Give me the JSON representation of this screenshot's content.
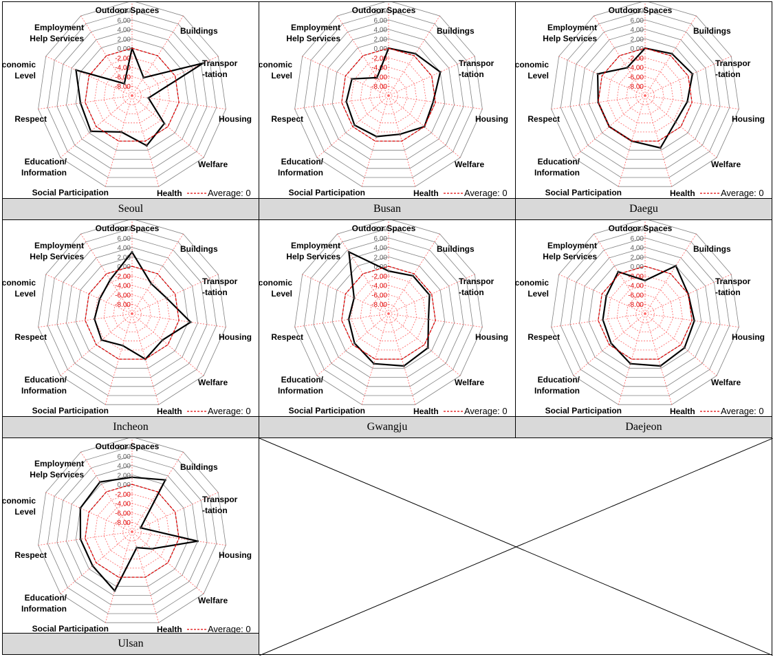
{
  "legend": {
    "label": "Average: 0"
  },
  "colors": {
    "series": "#000000",
    "average": "#e00000",
    "grid": "#808080",
    "spoke": "#ff6060",
    "caption_bg": "#d9d9d9"
  },
  "chart_data": [
    {
      "type": "radar",
      "caption": "Seoul",
      "axes": [
        "Outdoor Spaces",
        "Buildings",
        "Transpor\n-tation",
        "Housing",
        "Welfare",
        "Health",
        "Social Participation",
        "Education/\nInformation",
        "Respect",
        "Economic\nLevel",
        "Employment\nHelp Services"
      ],
      "ticks": [
        "8.00",
        "6.00",
        "4.00",
        "2.00",
        "0.00",
        "-2.00",
        "-4.00",
        "-6.00",
        "-8.00"
      ],
      "rlim": [
        -10,
        8
      ],
      "series": [
        {
          "name": "",
          "values": [
            0.0,
            -5.5,
            6.5,
            -6.5,
            -1.0,
            1.0,
            -2.0,
            1.5,
            1.0,
            3.0,
            -7.0
          ]
        },
        {
          "name": "Average: 0",
          "values": [
            0,
            0,
            0,
            0,
            0,
            0,
            0,
            0,
            0,
            0,
            0
          ]
        }
      ]
    },
    {
      "type": "radar",
      "caption": "Busan",
      "axes": [
        "Outdoor Spaces",
        "Buildings",
        "Transpor\n-tation",
        "Housing",
        "Welfare",
        "Health",
        "Social Participation",
        "Education/\nInformation",
        "Respect",
        "Economic\nLevel",
        "Employment\nHelp Services"
      ],
      "ticks": [
        "8.00",
        "6.00",
        "4.00",
        "2.00",
        "0.00",
        "-2.00",
        "-4.00",
        "-6.00",
        "-8.00"
      ],
      "rlim": [
        -10,
        8
      ],
      "series": [
        {
          "name": "",
          "values": [
            0.0,
            0.5,
            2.0,
            -0.5,
            0.0,
            -1.5,
            -1.0,
            -0.5,
            -1.0,
            -1.5,
            -5.5
          ]
        },
        {
          "name": "Average: 0",
          "values": [
            0,
            0,
            0,
            0,
            0,
            0,
            0,
            0,
            0,
            0,
            0
          ]
        }
      ]
    },
    {
      "type": "radar",
      "caption": "Daegu",
      "axes": [
        "Outdoor Spaces",
        "Buildings",
        "Transpor\n-tation",
        "Housing",
        "Welfare",
        "Health",
        "Social Participation",
        "Education/\nInformation",
        "Respect",
        "Economic\nLevel",
        "Employment\nHelp Services"
      ],
      "ticks": [
        "8.00",
        "6.00",
        "4.00",
        "2.00",
        "0.00",
        "-2.00",
        "-4.00",
        "-6.00",
        "-8.00"
      ],
      "rlim": [
        -10,
        8
      ],
      "series": [
        {
          "name": "",
          "values": [
            0.0,
            0.5,
            1.0,
            -1.0,
            -1.5,
            1.5,
            0.0,
            0.0,
            0.0,
            1.0,
            -3.0
          ]
        },
        {
          "name": "Average: 0",
          "values": [
            0,
            0,
            0,
            0,
            0,
            0,
            0,
            0,
            0,
            0,
            0
          ]
        }
      ]
    },
    {
      "type": "radar",
      "caption": "Incheon",
      "axes": [
        "Outdoor Spaces",
        "Buildings",
        "Transpor\n-tation",
        "Housing",
        "Welfare",
        "Health",
        "Social Participation",
        "Education/\nInformation",
        "Respect",
        "Economic\nLevel",
        "Employment\nHelp Services"
      ],
      "ticks": [
        "8.00",
        "6.00",
        "4.00",
        "2.00",
        "0.00",
        "-2.00",
        "-4.00",
        "-6.00",
        "-8.00"
      ],
      "rlim": [
        -10,
        8
      ],
      "series": [
        {
          "name": "",
          "values": [
            3.0,
            -2.5,
            -2.0,
            2.5,
            -1.5,
            0.0,
            -3.0,
            -1.5,
            -2.0,
            -2.5,
            -1.5
          ]
        },
        {
          "name": "Average: 0",
          "values": [
            0,
            0,
            0,
            0,
            0,
            0,
            0,
            0,
            0,
            0,
            0
          ]
        }
      ]
    },
    {
      "type": "radar",
      "caption": "Gwangju",
      "axes": [
        "Outdoor Spaces",
        "Buildings",
        "Transpor\n-tation",
        "Housing",
        "Welfare",
        "Health",
        "Social Participation",
        "Education/\nInformation",
        "Respect",
        "Economic\nLevel",
        "Employment\nHelp Services"
      ],
      "ticks": [
        "8.00",
        "6.00",
        "4.00",
        "2.00",
        "0.00",
        "-2.00",
        "-4.00",
        "-6.00",
        "-8.00"
      ],
      "rlim": [
        -10,
        8
      ],
      "series": [
        {
          "name": "",
          "values": [
            -1.0,
            -0.5,
            -0.5,
            -1.5,
            1.0,
            1.5,
            1.0,
            -0.5,
            -1.5,
            -2.0,
            5.5
          ]
        },
        {
          "name": "Average: 0",
          "values": [
            0,
            0,
            0,
            0,
            0,
            0,
            0,
            0,
            0,
            0,
            0
          ]
        }
      ]
    },
    {
      "type": "radar",
      "caption": "Daejeon",
      "axes": [
        "Outdoor Spaces",
        "Buildings",
        "Transpor\n-tation",
        "Housing",
        "Welfare",
        "Health",
        "Social Participation",
        "Education/\nInformation",
        "Respect",
        "Economic\nLevel",
        "Employment\nHelp Services"
      ],
      "ticks": [
        "8.00",
        "6.00",
        "4.00",
        "2.00",
        "0.00",
        "-2.00",
        "-4.00",
        "-6.00",
        "-8.00"
      ],
      "rlim": [
        -10,
        8
      ],
      "series": [
        {
          "name": "",
          "values": [
            -3.0,
            2.0,
            0.0,
            0.5,
            1.0,
            1.5,
            1.0,
            -0.5,
            -1.0,
            -1.0,
            0.5
          ]
        },
        {
          "name": "Average: 0",
          "values": [
            0,
            0,
            0,
            0,
            0,
            0,
            0,
            0,
            0,
            0,
            0
          ]
        }
      ]
    },
    {
      "type": "radar",
      "caption": "Ulsan",
      "axes": [
        "Outdoor Spaces",
        "Buildings",
        "Transpor\n-tation",
        "Housing",
        "Welfare",
        "Health",
        "Social Participation",
        "Education/\nInformation",
        "Respect",
        "Economic\nLevel",
        "Employment\nHelp Services"
      ],
      "ticks": [
        "8.00",
        "6.00",
        "4.00",
        "2.00",
        "0.00",
        "-2.00",
        "-4.00",
        "-6.00",
        "-8.00"
      ],
      "rlim": [
        -10,
        8
      ],
      "series": [
        {
          "name": "",
          "values": [
            1.5,
            3.0,
            -8.0,
            4.0,
            -4.5,
            -6.5,
            3.0,
            1.0,
            1.0,
            2.0,
            2.5
          ]
        },
        {
          "name": "Average: 0",
          "values": [
            0,
            0,
            0,
            0,
            0,
            0,
            0,
            0,
            0,
            0,
            0
          ]
        }
      ]
    }
  ]
}
